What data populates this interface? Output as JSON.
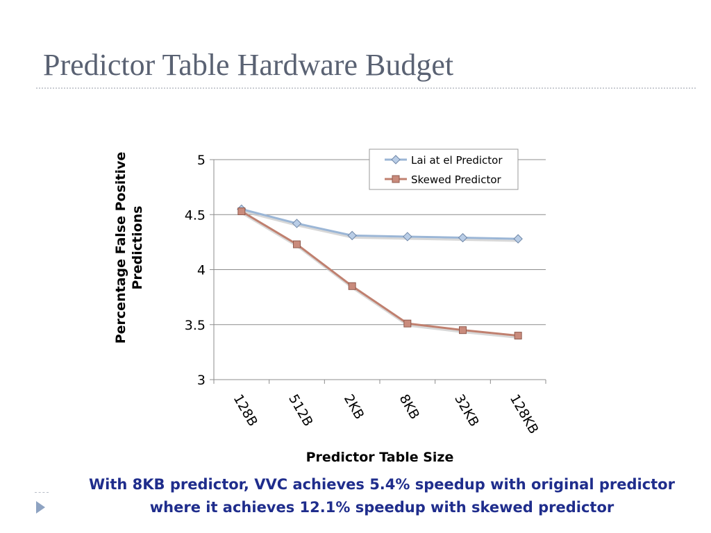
{
  "slide": {
    "title": "Predictor Table Hardware Budget",
    "conclusion": "With 8KB predictor, VVC achieves 5.4%  speedup with original predictor where it achieves 12.1%  speedup with skewed predictor"
  },
  "icons": {
    "bullet": "triangle-right-icon"
  },
  "colors": {
    "title": "#5a6273",
    "conclusion": "#1f2d8c",
    "series_lai": "#9bb6d6",
    "series_skewed": "#c0806f"
  },
  "chart_data": {
    "type": "line",
    "title": "",
    "xlabel": "Predictor Table Size",
    "ylabel": "Percentage False Positive Predictions",
    "categories": [
      "128B",
      "512B",
      "2KB",
      "8KB",
      "32KB",
      "128KB"
    ],
    "series": [
      {
        "name": "Lai at el Predictor",
        "marker": "diamond",
        "values": [
          4.55,
          4.42,
          4.31,
          4.3,
          4.29,
          4.28
        ]
      },
      {
        "name": "Skewed Predictor",
        "marker": "square",
        "values": [
          4.53,
          4.23,
          3.85,
          3.51,
          3.45,
          3.4
        ]
      }
    ],
    "ylim": [
      3,
      5
    ],
    "yticks": [
      "3",
      "3.5",
      "4",
      "4.5",
      "5"
    ],
    "grid": true,
    "legend": "top-right"
  }
}
